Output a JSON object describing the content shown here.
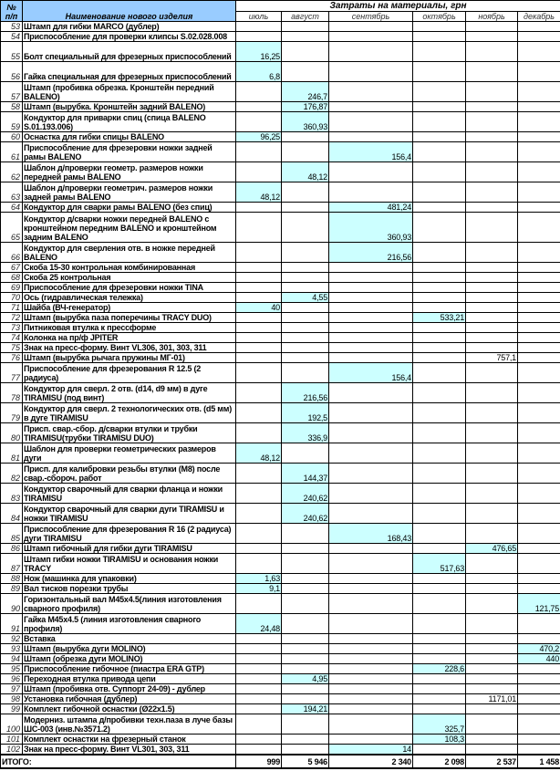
{
  "header": {
    "num_label_1": "№",
    "num_label_2": "п/п",
    "name_label": "Наименование нового изделия",
    "costs_title": "Затраты на материалы, грн",
    "months": [
      "июль",
      "август",
      "сентябрь",
      "октябрь",
      "ноябрь",
      "декабрь"
    ]
  },
  "colors": {
    "header_fill": "#99ccff",
    "value_fill": "#ccffff"
  },
  "rows": [
    {
      "n": "53",
      "name": "Штамп для гибки MARCO (дублер)",
      "values": [
        "",
        "",
        "",
        "",
        "",
        ""
      ]
    },
    {
      "n": "54",
      "name": "Приспособление для проверки клипсы S.02.028.008",
      "values": [
        "",
        "",
        "",
        "",
        "",
        ""
      ]
    },
    {
      "n": "55",
      "name": "Болт специальный для фрезерных приспособлений",
      "values": [
        "16,25",
        "",
        "",
        "",
        "",
        ""
      ]
    },
    {
      "n": "56",
      "name": "Гайка специальная для фрезерных приспособлений",
      "values": [
        "6,8",
        "",
        "",
        "",
        "",
        ""
      ]
    },
    {
      "n": "57",
      "name": "Штамп (пробивка обрезка. Кронштейн передний BALENO)",
      "values": [
        "",
        "246,7",
        "",
        "",
        "",
        ""
      ]
    },
    {
      "n": "58",
      "name": "Штамп (вырубка. Кронштейн задний BALENO)",
      "values": [
        "",
        "176,87",
        "",
        "",
        "",
        ""
      ]
    },
    {
      "n": "59",
      "name": "Кондуктор для приварки спиц (спица BALENO S.01.193.006)",
      "values": [
        "",
        "360,93",
        "",
        "",
        "",
        ""
      ]
    },
    {
      "n": "60",
      "name": "Оснастка для гибки спицы BALENO",
      "values": [
        "96,25",
        "",
        "",
        "",
        "",
        ""
      ]
    },
    {
      "n": "61",
      "name": "Приспособление для фрезеровки ножки задней рамы BALENO",
      "values": [
        "",
        "",
        "156,4",
        "",
        "",
        ""
      ]
    },
    {
      "n": "62",
      "name": "Шаблон д/проверки геометр. размеров ножки передней рамы BALENO",
      "values": [
        "",
        "48,12",
        "",
        "",
        "",
        ""
      ]
    },
    {
      "n": "63",
      "name": "Шаблон д/проверки геометрич. размеров ножки задней рамы BALENO",
      "values": [
        "48,12",
        "",
        "",
        "",
        "",
        ""
      ]
    },
    {
      "n": "64",
      "name": "Кондуктор для сварки рамы  BALENO (без спиц)",
      "values": [
        "",
        "",
        "481,24",
        "",
        "",
        ""
      ]
    },
    {
      "n": "65",
      "name": "Кондуктор д/сварки ножки передней BALENO с кронштейном передним BALENO и кронштейном задним BALENO",
      "values": [
        "",
        "",
        "360,93",
        "",
        "",
        ""
      ]
    },
    {
      "n": "66",
      "name": "Кондуктор для сверления отв. в ножке передней BALENO",
      "values": [
        "",
        "",
        "216,56",
        "",
        "",
        ""
      ]
    },
    {
      "n": "67",
      "name": "Скоба 15-30 контрольная комбинированная",
      "values": [
        "",
        "",
        "",
        "",
        "",
        ""
      ]
    },
    {
      "n": "68",
      "name": "Скоба 25 контрольная",
      "values": [
        "",
        "",
        "",
        "",
        "",
        ""
      ]
    },
    {
      "n": "69",
      "name": "Приспособление для фрезеровки ножки TINA",
      "values": [
        "",
        "",
        "",
        "",
        "",
        ""
      ]
    },
    {
      "n": "70",
      "name": "Ось (гидравлическая тележка)",
      "values": [
        "",
        "4,55",
        "",
        "",
        "",
        ""
      ]
    },
    {
      "n": "71",
      "name": "Шайба (ВЧ-генератор)",
      "values": [
        "40",
        "",
        "",
        "",
        "",
        ""
      ]
    },
    {
      "n": "72",
      "name": "Штамп (вырубка паза поперечины TRACY DUO)",
      "values": [
        "",
        "",
        "",
        "533,21",
        "",
        ""
      ]
    },
    {
      "n": "73",
      "name": "Питниковая втулка к прессформе",
      "values": [
        "",
        "",
        "",
        "",
        "",
        ""
      ]
    },
    {
      "n": "74",
      "name": "Колонка на пр/ф JPITER",
      "values": [
        "",
        "",
        "",
        "",
        "",
        ""
      ]
    },
    {
      "n": "75",
      "name": "Знак на пресс-форму. Винт VL306, 301, 303, 311",
      "values": [
        "",
        "",
        "",
        "",
        "",
        ""
      ]
    },
    {
      "n": "76",
      "name": "Штамп (вырубка рычага пружины МГ-01)",
      "values": [
        "",
        "",
        "",
        "",
        "757,1",
        ""
      ],
      "unshaded": [
        4
      ]
    },
    {
      "n": "77",
      "name": "Приспособление для фрезерования R 12.5 (2 радиуса)",
      "values": [
        "",
        "",
        "156,4",
        "",
        "",
        ""
      ]
    },
    {
      "n": "78",
      "name": "Кондуктор для сверл. 2 отв. (d14, d9 мм) в дуге TIRAMISU (под винт)",
      "values": [
        "",
        "216,56",
        "",
        "",
        "",
        ""
      ]
    },
    {
      "n": "79",
      "name": "Кондуктор для сверл. 2 технологических отв. (d5 мм) в дуге TIRAMISU",
      "values": [
        "",
        "192,5",
        "",
        "",
        "",
        ""
      ]
    },
    {
      "n": "80",
      "name": "Присп. свар.-сбор. д/сварки втулки и трубки TIRAMISU(трубки TIRAMISU DUO)",
      "values": [
        "",
        "336,9",
        "",
        "",
        "",
        ""
      ]
    },
    {
      "n": "81",
      "name": "Шаблон для проверки геометрических размеров дуги",
      "values": [
        "48,12",
        "",
        "",
        "",
        "",
        ""
      ]
    },
    {
      "n": "82",
      "name": "Присп. для калибровки резьбы втулки (M8) после свар.-сбороч. работ",
      "values": [
        "",
        "144,37",
        "",
        "",
        "",
        ""
      ]
    },
    {
      "n": "83",
      "name": "Кондуктор сварочный для сварки фланца и ножки TIRAMISU",
      "values": [
        "",
        "240,62",
        "",
        "",
        "",
        ""
      ]
    },
    {
      "n": "84",
      "name": "Кондуктор сварочный для сварки дуги TIRAMISU и ножки TIRAMISU",
      "values": [
        "",
        "240,62",
        "",
        "",
        "",
        ""
      ]
    },
    {
      "n": "85",
      "name": "Приспособление для фрезерования R 16 (2 радиуса) дуги TIRAMISU",
      "values": [
        "",
        "",
        "168,43",
        "",
        "",
        ""
      ]
    },
    {
      "n": "86",
      "name": "Штамп гибочный для гибки дуги TIRAMISU",
      "values": [
        "",
        "",
        "",
        "",
        "476,65",
        ""
      ]
    },
    {
      "n": "87",
      "name": "Штамп гибки ножки TIRAMISU и основания ножки TRACY",
      "values": [
        "",
        "",
        "",
        "517,63",
        "",
        ""
      ]
    },
    {
      "n": "88",
      "name": "Нож (машинка для упаковки)",
      "values": [
        "1,63",
        "",
        "",
        "",
        "",
        ""
      ]
    },
    {
      "n": "89",
      "name": "Вал тисков порезки трубы",
      "values": [
        "9,1",
        "",
        "",
        "",
        "",
        ""
      ]
    },
    {
      "n": "90",
      "name": "Горизонтальный вал M45x4.5(линия изготовления сварного профиля)",
      "values": [
        "",
        "",
        "",
        "",
        "",
        "121,75"
      ]
    },
    {
      "n": "91",
      "name": "Гайка M45x4.5 (линия изготовления сварного профиля)",
      "values": [
        "24,48",
        "",
        "",
        "",
        "",
        ""
      ]
    },
    {
      "n": "92",
      "name": "Вставка",
      "values": [
        "",
        "",
        "",
        "",
        "",
        ""
      ]
    },
    {
      "n": "93",
      "name": "Штамп (вырубка дуги MOLINO)",
      "values": [
        "",
        "",
        "",
        "",
        "",
        "470,2"
      ]
    },
    {
      "n": "94",
      "name": "Штамп (обрезка дуги MOLINO)",
      "values": [
        "",
        "",
        "",
        "",
        "",
        "440"
      ]
    },
    {
      "n": "95",
      "name": "Приспособление гибочное (пиастра ERA GTP)",
      "values": [
        "",
        "",
        "",
        "228,6",
        "",
        ""
      ]
    },
    {
      "n": "96",
      "name": "Переходная втулка привода цепи",
      "values": [
        "",
        "4,95",
        "",
        "",
        "",
        ""
      ]
    },
    {
      "n": "97",
      "name": "Штамп (пробивка отв. Суппорт 24-09) - дублер",
      "values": [
        "",
        "",
        "",
        "",
        "",
        ""
      ]
    },
    {
      "n": "98",
      "name": "Установка гибочная (дублер)",
      "values": [
        "",
        "",
        "",
        "",
        "1171,01",
        ""
      ],
      "unshaded": [
        4
      ]
    },
    {
      "n": "99",
      "name": "Комплект гибочной оснастки (Ø22x1.5)",
      "values": [
        "",
        "194,21",
        "",
        "",
        "",
        ""
      ]
    },
    {
      "n": "100",
      "name": "Модерниз. штампа д/пробивки техн.паза в луче базы ШС-003 (инв.№3571.2)",
      "values": [
        "",
        "",
        "",
        "325,7",
        "",
        ""
      ]
    },
    {
      "n": "101",
      "name": "Комплект оснастки на фрезерный станок",
      "values": [
        "",
        "",
        "",
        "108,3",
        "",
        ""
      ]
    },
    {
      "n": "102",
      "name": "Знак на пресс-форму. Винт VL301, 303,  311",
      "values": [
        "",
        "",
        "14",
        "",
        "",
        ""
      ]
    }
  ],
  "total": {
    "label": "ИТОГО:",
    "values": [
      "999",
      "5 946",
      "2 340",
      "2 098",
      "2 537",
      "1 458"
    ]
  }
}
